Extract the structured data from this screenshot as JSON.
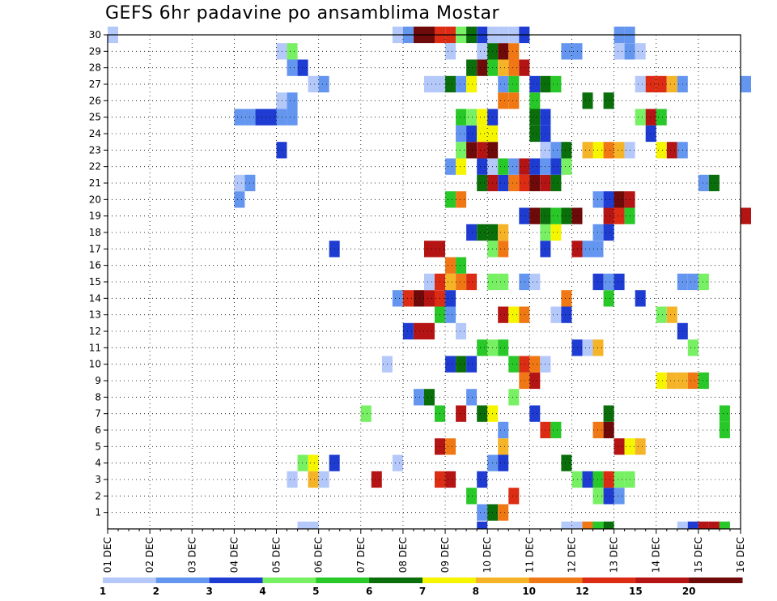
{
  "chart_data": {
    "type": "heatmap",
    "title": "GEFS 6hr padavine po ansamblima Mostar",
    "xlabel": "",
    "ylabel": "",
    "x_ticks": [
      "01 DEC",
      "02 DEC",
      "03 DEC",
      "04 DEC",
      "05 DEC",
      "06 DEC",
      "07 DEC",
      "08 DEC",
      "09 DEC",
      "10 DEC",
      "11 DEC",
      "12 DEC",
      "13 DEC",
      "14 DEC",
      "15 DEC",
      "16 DEC"
    ],
    "y_ticks": [
      "1",
      "2",
      "3",
      "4",
      "5",
      "6",
      "7",
      "8",
      "9",
      "10",
      "11",
      "12",
      "13",
      "14",
      "15",
      "16",
      "17",
      "18",
      "19",
      "20",
      "21",
      "22",
      "23",
      "24",
      "25",
      "26",
      "27",
      "28",
      "29",
      "30"
    ],
    "grid": true,
    "legend": "bottom colorbar",
    "colorbar": {
      "labels": [
        "1",
        "2",
        "3",
        "4",
        "5",
        "6",
        "7",
        "8",
        "10",
        "12",
        "15",
        "20"
      ],
      "colors": [
        "#b4c8fa",
        "#6496f0",
        "#1e3cd2",
        "#78f064",
        "#28c828",
        "#0a6e0a",
        "#f5f500",
        "#f5b428",
        "#f07814",
        "#dc2d14",
        "#b41414",
        "#6e0a0a"
      ]
    },
    "cells": [
      {
        "x": [
          "09 DEC 18",
          "10 DEC 00",
          "10 DEC 06"
        ],
        "level": [
          2,
          6,
          9
        ],
        "row": 0
      },
      {
        "x": [
          "09 DEC 12",
          "10 DEC 12",
          "12 DEC 12",
          "12 DEC 18",
          "13 DEC 00"
        ],
        "level": [
          5,
          10,
          4,
          3,
          2
        ],
        "row": 1
      },
      {
        "x": [
          "05 DEC 06",
          "05 DEC 18",
          "06 DEC 00",
          "07 DEC 06",
          "08 DEC 18",
          "09 DEC 00",
          "09 DEC 18",
          "12 DEC 00",
          "12 DEC 06",
          "12 DEC 12",
          "12 DEC 18",
          "13 DEC 00",
          "13 DEC 06"
        ],
        "level": [
          1,
          8,
          1,
          11,
          10,
          11,
          3,
          4,
          3,
          5,
          10,
          4,
          4
        ],
        "row": 2
      },
      {
        "x": [
          "05 DEC 12",
          "05 DEC 18",
          "06 DEC 06",
          "07 DEC 18",
          "10 DEC 00",
          "10 DEC 06",
          "11 DEC 18"
        ],
        "level": [
          4,
          7,
          3,
          1,
          2,
          3,
          6
        ],
        "row": 3
      },
      {
        "x": [
          "08 DEC 18",
          "09 DEC 00",
          "10 DEC 06",
          "13 DEC 00",
          "13 DEC 06",
          "13 DEC 12"
        ],
        "level": [
          11,
          9,
          8,
          11,
          7,
          8
        ],
        "row": 4
      },
      {
        "x": [
          "10 DEC 06",
          "11 DEC 06",
          "11 DEC 12",
          "12 DEC 12",
          "12 DEC 18",
          "15 DEC 12"
        ],
        "level": [
          2,
          10,
          5,
          9,
          12,
          5
        ],
        "row": 5
      },
      {
        "x": [
          "07 DEC 00",
          "08 DEC 18",
          "09 DEC 06",
          "09 DEC 18",
          "10 DEC 00",
          "11 DEC 00",
          "12 DEC 18",
          "15 DEC 12"
        ],
        "level": [
          4,
          5,
          11,
          6,
          7,
          3,
          6,
          5
        ],
        "row": 6
      },
      {
        "x": [
          "08 DEC 06",
          "08 DEC 12",
          "09 DEC 12",
          "10 DEC 12"
        ],
        "level": [
          2,
          6,
          2,
          4
        ],
        "row": 7
      },
      {
        "x": [
          "10 DEC 18",
          "11 DEC 00",
          "14 DEC 00",
          "14 DEC 06",
          "14 DEC 12",
          "14 DEC 18",
          "15 DEC 00"
        ],
        "level": [
          9,
          11,
          7,
          8,
          8,
          9,
          5
        ],
        "row": 8
      },
      {
        "x": [
          "07 DEC 12",
          "09 DEC 00",
          "09 DEC 06",
          "09 DEC 12",
          "10 DEC 12",
          "10 DEC 18",
          "11 DEC 00",
          "11 DEC 06"
        ],
        "level": [
          1,
          3,
          6,
          3,
          5,
          10,
          9,
          1
        ],
        "row": 9
      },
      {
        "x": [
          "09 DEC 18",
          "10 DEC 00",
          "10 DEC 06",
          "12 DEC 00",
          "12 DEC 06",
          "12 DEC 12",
          "14 DEC 18"
        ],
        "level": [
          5,
          4,
          5,
          3,
          1,
          8,
          4
        ],
        "row": 10
      },
      {
        "x": [
          "08 DEC 00",
          "08 DEC 06",
          "08 DEC 12",
          "09 DEC 06",
          "14 DEC 12"
        ],
        "level": [
          3,
          11,
          11,
          1,
          3
        ],
        "row": 11
      },
      {
        "x": [
          "08 DEC 18",
          "09 DEC 00",
          "10 DEC 06",
          "10 DEC 12",
          "10 DEC 18",
          "11 DEC 12",
          "11 DEC 18",
          "14 DEC 00",
          "14 DEC 06"
        ],
        "level": [
          5,
          2,
          11,
          7,
          9,
          1,
          3,
          4,
          8
        ],
        "row": 12
      },
      {
        "x": [
          "07 DEC 18",
          "08 DEC 00",
          "08 DEC 06",
          "08 DEC 12",
          "08 DEC 18",
          "09 DEC 00",
          "11 DEC 18",
          "12 DEC 18",
          "13 DEC 12"
        ],
        "level": [
          2,
          10,
          12,
          11,
          10,
          3,
          9,
          5,
          3
        ],
        "row": 13
      },
      {
        "x": [
          "08 DEC 12",
          "08 DEC 18",
          "09 DEC 00",
          "09 DEC 06",
          "09 DEC 12",
          "10 DEC 00",
          "10 DEC 06",
          "10 DEC 18",
          "11 DEC 00",
          "12 DEC 12",
          "12 DEC 18",
          "13 DEC 00",
          "14 DEC 12",
          "14 DEC 18",
          "15 DEC 00"
        ],
        "level": [
          1,
          10,
          8,
          9,
          10,
          4,
          4,
          2,
          1,
          3,
          2,
          3,
          2,
          2,
          4
        ],
        "row": 14
      },
      {
        "x": [
          "09 DEC 00",
          "09 DEC 06"
        ],
        "level": [
          9,
          5
        ],
        "row": 15
      },
      {
        "x": [
          "06 DEC 06",
          "08 DEC 12",
          "08 DEC 18",
          "10 DEC 00",
          "10 DEC 06",
          "11 DEC 06",
          "12 DEC 00",
          "12 DEC 06",
          "12 DEC 12"
        ],
        "level": [
          3,
          11,
          11,
          4,
          9,
          3,
          11,
          2,
          2
        ],
        "row": 16
      },
      {
        "x": [
          "09 DEC 12",
          "09 DEC 18",
          "10 DEC 00",
          "10 DEC 06",
          "11 DEC 06",
          "11 DEC 12",
          "12 DEC 12",
          "12 DEC 18"
        ],
        "level": [
          3,
          6,
          6,
          8,
          4,
          7,
          2,
          3
        ],
        "row": 17
      },
      {
        "x": [
          "10 DEC 18",
          "11 DEC 00",
          "11 DEC 06",
          "11 DEC 12",
          "11 DEC 18",
          "12 DEC 00",
          "12 DEC 18",
          "13 DEC 00",
          "13 DEC 06",
          "16 DEC 00"
        ],
        "level": [
          3,
          12,
          6,
          5,
          6,
          12,
          11,
          10,
          5,
          11
        ],
        "row": 18
      },
      {
        "x": [
          "04 DEC 00",
          "09 DEC 00",
          "09 DEC 06",
          "12 DEC 12",
          "12 DEC 18",
          "13 DEC 00",
          "13 DEC 06"
        ],
        "level": [
          2,
          5,
          9,
          2,
          3,
          12,
          11
        ],
        "row": 19
      },
      {
        "x": [
          "04 DEC 00",
          "04 DEC 06",
          "09 DEC 18",
          "10 DEC 00",
          "10 DEC 06",
          "10 DEC 12",
          "10 DEC 18",
          "11 DEC 00",
          "11 DEC 06",
          "11 DEC 12",
          "15 DEC 00",
          "15 DEC 06"
        ],
        "level": [
          1,
          2,
          6,
          11,
          3,
          9,
          10,
          12,
          11,
          6,
          2,
          6
        ],
        "row": 20
      },
      {
        "x": [
          "09 DEC 00",
          "09 DEC 06",
          "09 DEC 18",
          "10 DEC 00",
          "10 DEC 06",
          "10 DEC 12",
          "10 DEC 18",
          "11 DEC 00",
          "11 DEC 06",
          "11 DEC 12",
          "11 DEC 18"
        ],
        "level": [
          2,
          7,
          3,
          1,
          5,
          2,
          11,
          3,
          2,
          3,
          4
        ],
        "row": 21
      },
      {
        "x": [
          "05 DEC 00",
          "09 DEC 06",
          "09 DEC 12",
          "09 DEC 18",
          "10 DEC 00",
          "11 DEC 06",
          "11 DEC 12",
          "11 DEC 18",
          "12 DEC 06",
          "12 DEC 12",
          "12 DEC 18",
          "13 DEC 00",
          "13 DEC 06",
          "14 DEC 00",
          "14 DEC 06",
          "14 DEC 12"
        ],
        "level": [
          3,
          4,
          12,
          11,
          12,
          1,
          2,
          6,
          8,
          7,
          9,
          8,
          1,
          7,
          11,
          2
        ],
        "row": 22
      },
      {
        "x": [
          "09 DEC 06",
          "09 DEC 12",
          "09 DEC 18",
          "10 DEC 00",
          "11 DEC 00",
          "11 DEC 06",
          "13 DEC 18"
        ],
        "level": [
          2,
          3,
          7,
          7,
          6,
          3,
          3
        ],
        "row": 23
      },
      {
        "x": [
          "04 DEC 00",
          "04 DEC 06",
          "04 DEC 12",
          "04 DEC 18",
          "05 DEC 00",
          "05 DEC 06",
          "09 DEC 06",
          "09 DEC 12",
          "09 DEC 18",
          "10 DEC 00",
          "11 DEC 00",
          "11 DEC 06",
          "13 DEC 12",
          "13 DEC 18",
          "14 DEC 00"
        ],
        "level": [
          2,
          2,
          3,
          3,
          2,
          2,
          5,
          4,
          7,
          3,
          6,
          3,
          4,
          11,
          5
        ],
        "row": 24
      },
      {
        "x": [
          "05 DEC 00",
          "05 DEC 06",
          "10 DEC 06",
          "10 DEC 12",
          "11 DEC 00",
          "12 DEC 06",
          "12 DEC 18"
        ],
        "level": [
          1,
          2,
          9,
          9,
          5,
          6,
          6
        ],
        "row": 25
      },
      {
        "x": [
          "05 DEC 18",
          "06 DEC 00",
          "08 DEC 12",
          "08 DEC 18",
          "09 DEC 00",
          "09 DEC 06",
          "09 DEC 12",
          "10 DEC 06",
          "10 DEC 12",
          "11 DEC 00",
          "11 DEC 06",
          "11 DEC 12",
          "13 DEC 12",
          "13 DEC 18",
          "14 DEC 00",
          "14 DEC 06",
          "14 DEC 12",
          "16 DEC 00"
        ],
        "level": [
          1,
          2,
          1,
          1,
          6,
          2,
          7,
          2,
          5,
          3,
          6,
          5,
          1,
          10,
          10,
          8,
          2,
          2
        ],
        "row": 26
      },
      {
        "x": [
          "05 DEC 06",
          "05 DEC 12",
          "09 DEC 12",
          "09 DEC 18",
          "10 DEC 00",
          "10 DEC 06",
          "10 DEC 12",
          "10 DEC 18"
        ],
        "level": [
          2,
          3,
          6,
          12,
          5,
          8,
          9,
          11
        ],
        "row": 27
      },
      {
        "x": [
          "05 DEC 00",
          "05 DEC 06",
          "09 DEC 00",
          "09 DEC 18",
          "10 DEC 00",
          "10 DEC 06",
          "10 DEC 12",
          "11 DEC 18",
          "12 DEC 00",
          "13 DEC 00",
          "13 DEC 06",
          "13 DEC 12"
        ],
        "level": [
          1,
          4,
          1,
          1,
          6,
          12,
          9,
          2,
          2,
          1,
          2,
          1
        ],
        "row": 28
      },
      {
        "x": [
          "01 DEC 00",
          "07 DEC 18",
          "08 DEC 00",
          "08 DEC 06",
          "08 DEC 12",
          "08 DEC 18",
          "09 DEC 00",
          "09 DEC 06",
          "09 DEC 12",
          "09 DEC 18",
          "10 DEC 00",
          "10 DEC 06",
          "10 DEC 12",
          "10 DEC 18",
          "13 DEC 00",
          "13 DEC 06"
        ],
        "level": [
          1,
          1,
          2,
          12,
          12,
          10,
          10,
          4,
          6,
          3,
          1,
          1,
          1,
          3,
          2,
          2
        ],
        "row": 29
      },
      {
        "x": [
          "05 DEC 12",
          "05 DEC 18",
          "09 DEC 18",
          "11 DEC 18",
          "12 DEC 00",
          "12 DEC 06",
          "12 DEC 12",
          "12 DEC 18",
          "14 DEC 12",
          "14 DEC 18",
          "15 DEC 00",
          "15 DEC 06",
          "15 DEC 12"
        ],
        "level": [
          1,
          1,
          3,
          1,
          1,
          9,
          5,
          6,
          1,
          3,
          11,
          11,
          5
        ],
        "row": -1
      }
    ]
  }
}
